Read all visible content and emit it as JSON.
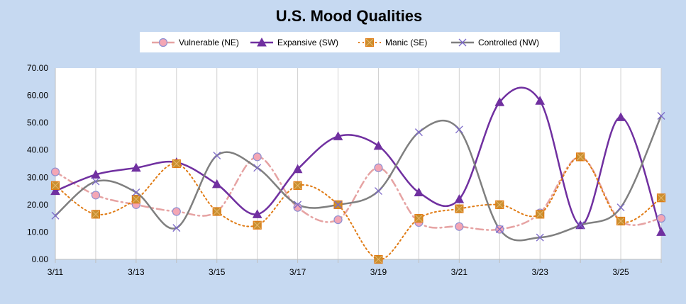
{
  "chart_data": {
    "type": "line",
    "title": "U.S.  Mood Qualities",
    "xlabel": "",
    "ylabel": "",
    "ylim": [
      0,
      70
    ],
    "yticks": [
      "0.00",
      "10.00",
      "20.00",
      "30.00",
      "40.00",
      "50.00",
      "60.00",
      "70.00"
    ],
    "ytick_values": [
      0,
      10,
      20,
      30,
      40,
      50,
      60,
      70
    ],
    "x": [
      "3/11",
      "3/12",
      "3/13",
      "3/14",
      "3/15",
      "3/16",
      "3/17",
      "3/18",
      "3/19",
      "3/20",
      "3/21",
      "3/22",
      "3/23",
      "3/24",
      "3/25",
      "3/26"
    ],
    "xtick_labels": [
      "3/11",
      "3/13",
      "3/15",
      "3/17",
      "3/19",
      "3/21",
      "3/23",
      "3/25"
    ],
    "grid": "vertical",
    "legend_position": "top",
    "series": [
      {
        "name": "Vulnerable (NE)",
        "color": "#e6a3a3",
        "marker": "circle",
        "marker_fill": "#f4a6b4",
        "marker_stroke": "#8e8fd1",
        "line_style": "dashdot",
        "values": [
          32,
          23.5,
          20,
          17.5,
          17.5,
          37.5,
          19,
          14.5,
          33.5,
          13.5,
          12,
          11,
          17,
          37.5,
          14,
          15
        ]
      },
      {
        "name": "Expansive (SW)",
        "color": "#7030a0",
        "marker": "triangle",
        "marker_fill": "#7030a0",
        "marker_stroke": "#7030a0",
        "line_style": "solid",
        "values": [
          25,
          31,
          33.5,
          35.5,
          27.5,
          16.5,
          33,
          45,
          41.5,
          24.5,
          22,
          57.5,
          58,
          12.5,
          52,
          10
        ]
      },
      {
        "name": "Manic (SE)",
        "color": "#e07b14",
        "marker": "square",
        "marker_fill": "#c89030",
        "marker_stroke": "#e07b14",
        "line_style": "dotted",
        "values": [
          27,
          16.5,
          22,
          35,
          17.5,
          12.5,
          27,
          20,
          0,
          15,
          18.5,
          20,
          16.5,
          37.5,
          14,
          22.5
        ]
      },
      {
        "name": "Controlled (NW)",
        "color": "#7f7f7f",
        "marker": "x",
        "marker_fill": "none",
        "marker_stroke": "#7b68c8",
        "line_style": "solid",
        "values": [
          16,
          28.5,
          24.5,
          11.5,
          38,
          33.5,
          20,
          20,
          25,
          46.5,
          47.5,
          11,
          8,
          12.5,
          19,
          52.5
        ]
      }
    ]
  }
}
